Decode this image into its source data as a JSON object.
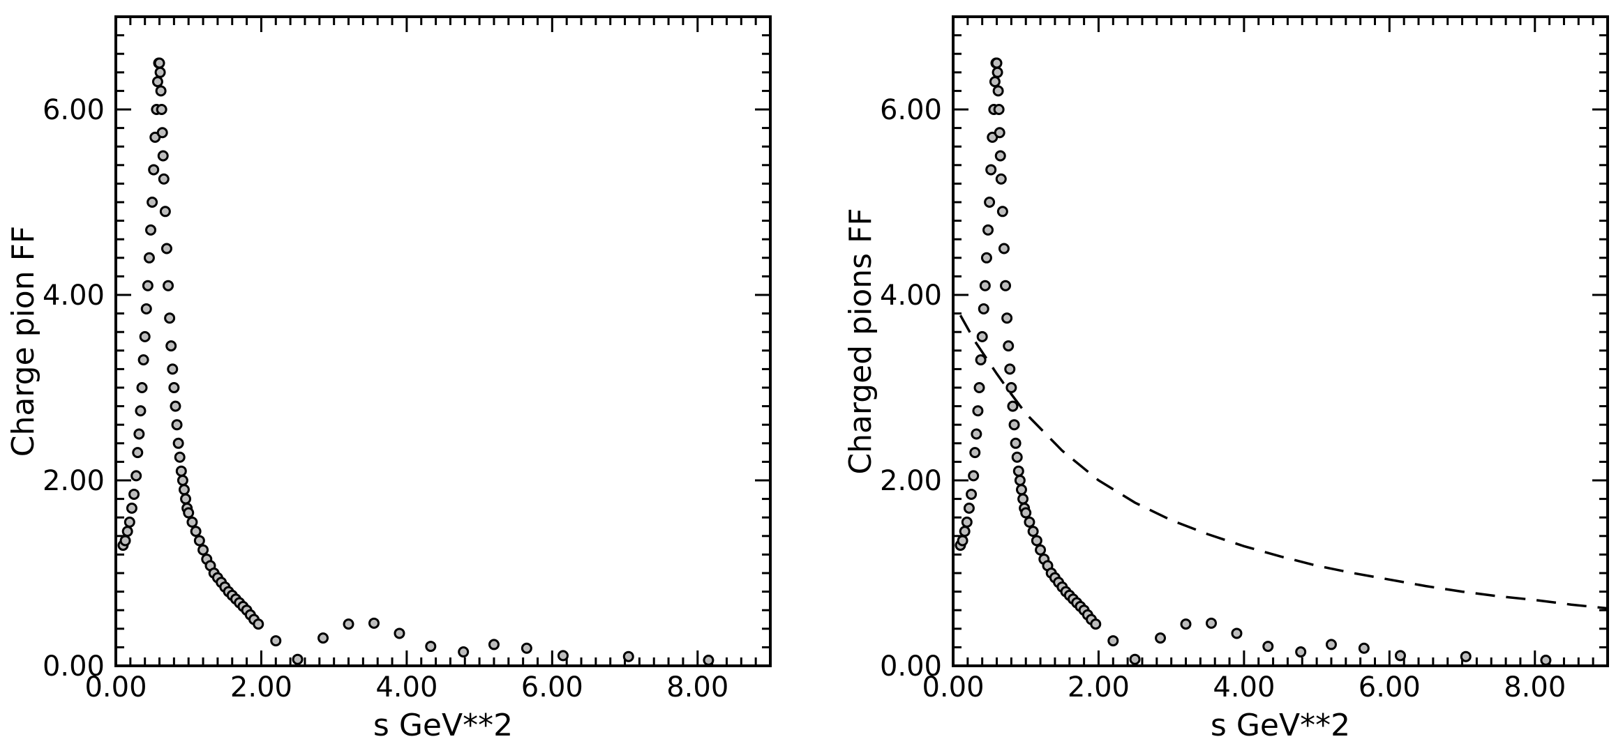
{
  "chart_data": [
    {
      "type": "scatter",
      "title": "",
      "xlabel": "s GeV**2",
      "ylabel": "Charge pion FF",
      "xlim": [
        0,
        9
      ],
      "ylim": [
        0,
        7
      ],
      "x_ticks": [
        0,
        2,
        4,
        6,
        8
      ],
      "x_tick_labels": [
        "0.00",
        "2.00",
        "4.00",
        "6.00",
        "8.00"
      ],
      "y_ticks": [
        0,
        2,
        4,
        6
      ],
      "y_tick_labels": [
        "0.00",
        "2.00",
        "4.00",
        "6.00"
      ],
      "grid": false,
      "series": [
        {
          "marker": "open-circle",
          "color": "#000000",
          "x": [
            0.1,
            0.13,
            0.16,
            0.19,
            0.22,
            0.25,
            0.28,
            0.3,
            0.32,
            0.34,
            0.36,
            0.38,
            0.4,
            0.42,
            0.44,
            0.46,
            0.48,
            0.5,
            0.52,
            0.54,
            0.56,
            0.575,
            0.59,
            0.6,
            0.61,
            0.62,
            0.63,
            0.64,
            0.65,
            0.66,
            0.68,
            0.7,
            0.72,
            0.74,
            0.76,
            0.78,
            0.8,
            0.82,
            0.84,
            0.86,
            0.88,
            0.9,
            0.92,
            0.94,
            0.96,
            0.98,
            1.0,
            1.05,
            1.1,
            1.15,
            1.2,
            1.25,
            1.3,
            1.35,
            1.4,
            1.45,
            1.5,
            1.55,
            1.6,
            1.65,
            1.7,
            1.75,
            1.8,
            1.85,
            1.9,
            1.96,
            2.2,
            2.5,
            2.85,
            3.2,
            3.55,
            3.9,
            4.33,
            4.78,
            5.2,
            5.65,
            6.15,
            7.05,
            8.15
          ],
          "y": [
            1.3,
            1.35,
            1.45,
            1.55,
            1.7,
            1.85,
            2.05,
            2.3,
            2.5,
            2.75,
            3.0,
            3.3,
            3.55,
            3.85,
            4.1,
            4.4,
            4.7,
            5.0,
            5.35,
            5.7,
            6.0,
            6.3,
            6.5,
            6.5,
            6.4,
            6.2,
            6.0,
            5.75,
            5.5,
            5.25,
            4.9,
            4.5,
            4.1,
            3.75,
            3.45,
            3.2,
            3.0,
            2.8,
            2.6,
            2.4,
            2.25,
            2.1,
            2.0,
            1.9,
            1.8,
            1.7,
            1.65,
            1.55,
            1.45,
            1.35,
            1.25,
            1.15,
            1.08,
            1.0,
            0.95,
            0.9,
            0.85,
            0.8,
            0.76,
            0.72,
            0.68,
            0.64,
            0.6,
            0.55,
            0.5,
            0.45,
            0.27,
            0.07,
            0.3,
            0.45,
            0.46,
            0.35,
            0.21,
            0.15,
            0.23,
            0.19,
            0.11,
            0.1,
            0.06
          ]
        }
      ]
    },
    {
      "type": "scatter",
      "title": "",
      "xlabel": "s GeV**2",
      "ylabel": "Charged pions FF",
      "xlim": [
        0,
        9
      ],
      "ylim": [
        0,
        7
      ],
      "x_ticks": [
        0,
        2,
        4,
        6,
        8
      ],
      "x_tick_labels": [
        "0.00",
        "2.00",
        "4.00",
        "6.00",
        "8.00"
      ],
      "y_ticks": [
        0,
        2,
        4,
        6
      ],
      "y_tick_labels": [
        "0.00",
        "2.00",
        "4.00",
        "6.00"
      ],
      "grid": false,
      "series": [
        {
          "marker": "open-circle",
          "color": "#000000",
          "x": [
            0.1,
            0.13,
            0.16,
            0.19,
            0.22,
            0.25,
            0.28,
            0.3,
            0.32,
            0.34,
            0.36,
            0.38,
            0.4,
            0.42,
            0.44,
            0.46,
            0.48,
            0.5,
            0.52,
            0.54,
            0.56,
            0.575,
            0.59,
            0.6,
            0.61,
            0.62,
            0.63,
            0.64,
            0.65,
            0.66,
            0.68,
            0.7,
            0.72,
            0.74,
            0.76,
            0.78,
            0.8,
            0.82,
            0.84,
            0.86,
            0.88,
            0.9,
            0.92,
            0.94,
            0.96,
            0.98,
            1.0,
            1.05,
            1.1,
            1.15,
            1.2,
            1.25,
            1.3,
            1.35,
            1.4,
            1.45,
            1.5,
            1.55,
            1.6,
            1.65,
            1.7,
            1.75,
            1.8,
            1.85,
            1.9,
            1.96,
            2.2,
            2.5,
            2.85,
            3.2,
            3.55,
            3.9,
            4.33,
            4.78,
            5.2,
            5.65,
            6.15,
            7.05,
            8.15
          ],
          "y": [
            1.3,
            1.35,
            1.45,
            1.55,
            1.7,
            1.85,
            2.05,
            2.3,
            2.5,
            2.75,
            3.0,
            3.3,
            3.55,
            3.85,
            4.1,
            4.4,
            4.7,
            5.0,
            5.35,
            5.7,
            6.0,
            6.3,
            6.5,
            6.5,
            6.4,
            6.2,
            6.0,
            5.75,
            5.5,
            5.25,
            4.9,
            4.5,
            4.1,
            3.75,
            3.45,
            3.2,
            3.0,
            2.8,
            2.6,
            2.4,
            2.25,
            2.1,
            2.0,
            1.9,
            1.8,
            1.7,
            1.65,
            1.55,
            1.45,
            1.35,
            1.25,
            1.15,
            1.08,
            1.0,
            0.95,
            0.9,
            0.85,
            0.8,
            0.76,
            0.72,
            0.68,
            0.64,
            0.6,
            0.55,
            0.5,
            0.45,
            0.27,
            0.07,
            0.3,
            0.45,
            0.46,
            0.35,
            0.21,
            0.15,
            0.23,
            0.19,
            0.11,
            0.1,
            0.06
          ]
        },
        {
          "type": "line",
          "style": "dashed",
          "color": "#000000",
          "x": [
            0.1,
            0.3,
            0.6,
            0.8,
            1.0,
            1.5,
            2.0,
            2.5,
            3.0,
            3.5,
            4.0,
            4.5,
            5.0,
            5.5,
            6.0,
            6.5,
            7.0,
            7.5,
            8.0,
            8.5,
            9.0
          ],
          "y": [
            3.78,
            3.5,
            3.15,
            2.93,
            2.72,
            2.32,
            2.0,
            1.76,
            1.57,
            1.42,
            1.29,
            1.18,
            1.08,
            1.0,
            0.93,
            0.86,
            0.8,
            0.75,
            0.71,
            0.66,
            0.62
          ]
        }
      ]
    }
  ]
}
